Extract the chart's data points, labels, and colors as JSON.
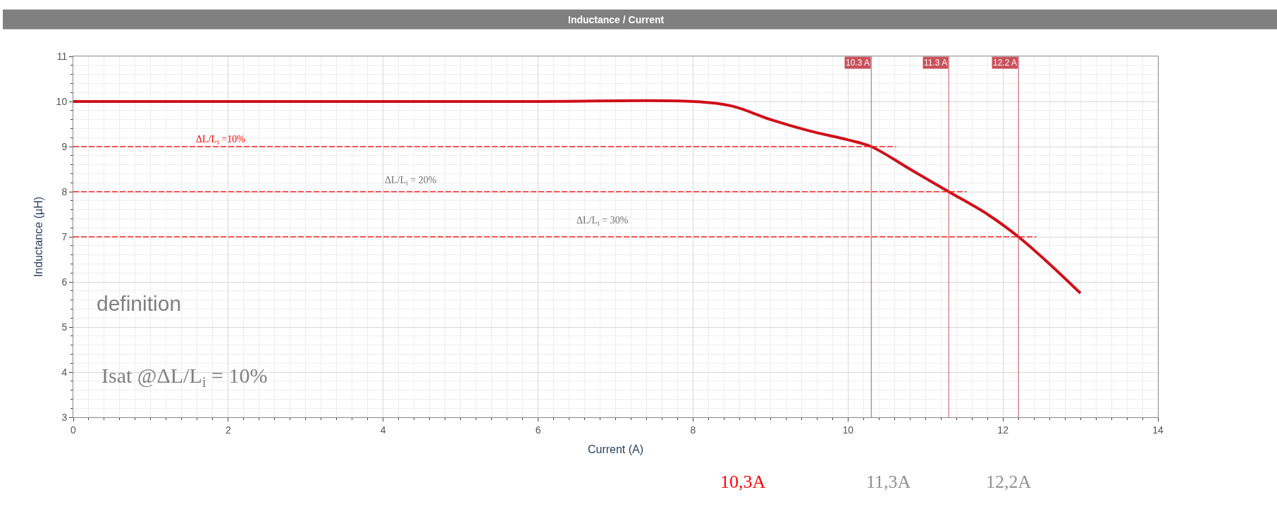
{
  "chart_data": {
    "type": "line",
    "title": "Inductance / Current",
    "xlabel": "Current (A)",
    "ylabel": "Inductance (µH)",
    "xlim": [
      0,
      14
    ],
    "xticks": [
      0,
      2,
      4,
      6,
      8,
      10,
      12,
      14
    ],
    "ylim": [
      3,
      11
    ],
    "yticks": [
      3,
      4,
      5,
      6,
      7,
      8,
      9,
      10,
      11
    ],
    "grid": true,
    "marker": "none",
    "series": [
      {
        "color": "#d0101a",
        "x": [
          0,
          2,
          4,
          6,
          8,
          8.5,
          9,
          9.5,
          10,
          10.3,
          10.8,
          11.3,
          11.8,
          12.2,
          12.6,
          13
        ],
        "values": [
          10,
          10,
          10,
          10,
          10,
          9.9,
          9.6,
          9.35,
          9.15,
          9.0,
          8.5,
          8.0,
          7.5,
          7.0,
          6.4,
          5.75
        ],
        "line_style": "solid"
      },
      {
        "color": "#ff2020",
        "x": [
          0,
          10.62
        ],
        "values": [
          9,
          9
        ],
        "line_style": "dashed"
      },
      {
        "color": "#ff2020",
        "x": [
          0,
          11.53
        ],
        "values": [
          8,
          8
        ],
        "line_style": "dashed"
      },
      {
        "color": "#ff2020",
        "x": [
          0,
          12.43
        ],
        "values": [
          7,
          7
        ],
        "line_style": "dashed"
      }
    ],
    "ref_lines": [
      {
        "axis": "x",
        "value": 10.3,
        "label": "10.3 A",
        "color": "#c8505a"
      },
      {
        "axis": "x",
        "value": 11.3,
        "label": "11.3 A",
        "color": "#c8505a"
      },
      {
        "axis": "x",
        "value": 12.2,
        "label": "12.2 A",
        "color": "#c8505a"
      }
    ],
    "annotations": [
      "ΔL/L$_{i}$ =10%",
      "ΔL/L$_{i}$ = 20%",
      "ΔL/L$_{i}$ = 30%",
      "definition",
      "Isat @ΔL/L$_{i}$ = 10%",
      "10,3A",
      "11,3A",
      "12,2A"
    ]
  }
}
